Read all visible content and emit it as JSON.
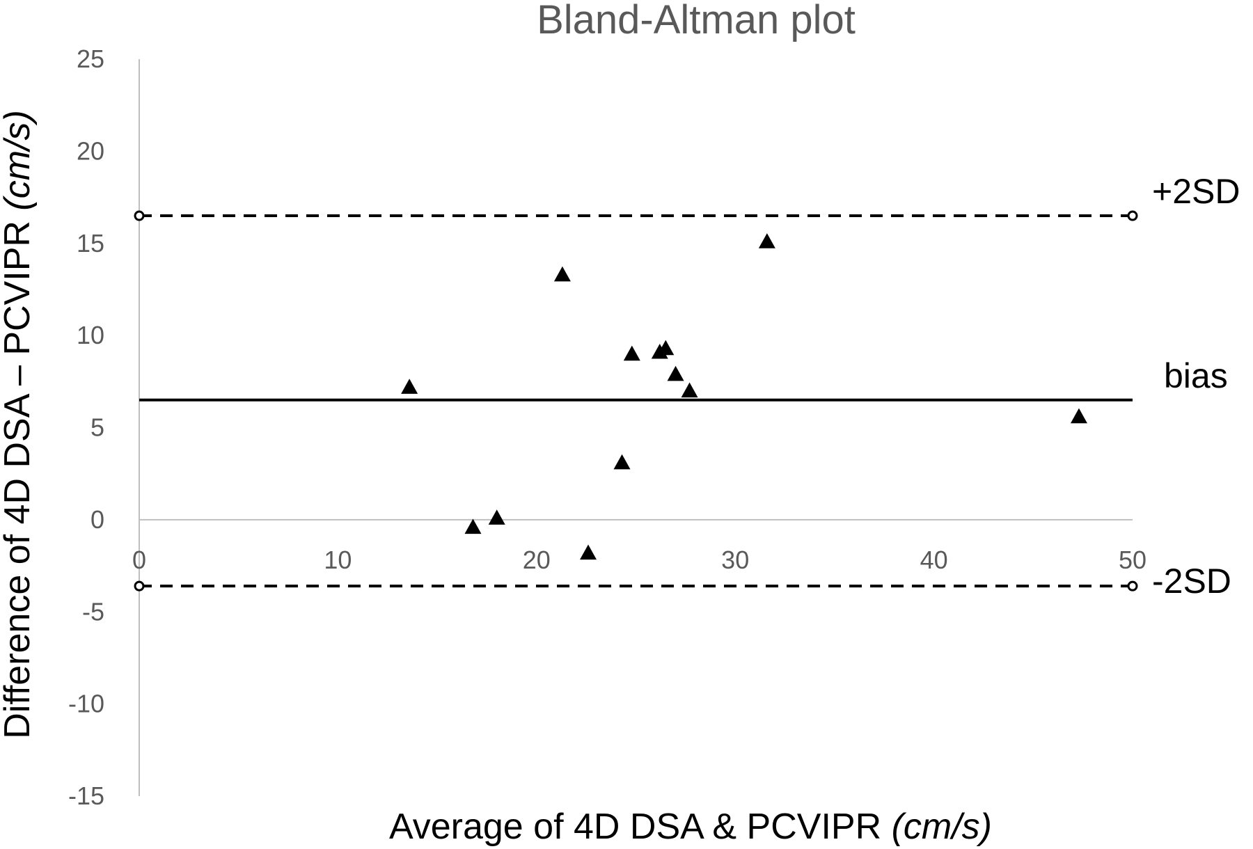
{
  "chart_data": {
    "type": "scatter",
    "title": "Bland-Altman plot",
    "xlabel_main": "Average of 4D DSA & PCVIPR ",
    "xlabel_unit": "(cm/s)",
    "ylabel_main": "Difference of 4D DSA – PCVIPR ",
    "ylabel_unit": "(cm/s)",
    "xlim": [
      0,
      50
    ],
    "ylim": [
      -15,
      25
    ],
    "x_ticks": [
      0,
      10,
      20,
      30,
      40,
      50
    ],
    "y_ticks": [
      25,
      20,
      15,
      10,
      5,
      0,
      -5,
      -10,
      -15
    ],
    "grid": false,
    "marker": "triangle",
    "points": [
      {
        "x": 13.6,
        "y": 7.2
      },
      {
        "x": 16.8,
        "y": -0.4
      },
      {
        "x": 18.0,
        "y": 0.1
      },
      {
        "x": 21.3,
        "y": 13.3
      },
      {
        "x": 22.6,
        "y": -1.8
      },
      {
        "x": 24.3,
        "y": 3.1
      },
      {
        "x": 24.8,
        "y": 9.0
      },
      {
        "x": 26.2,
        "y": 9.1
      },
      {
        "x": 26.5,
        "y": 9.3
      },
      {
        "x": 27.0,
        "y": 7.9
      },
      {
        "x": 27.7,
        "y": 7.0
      },
      {
        "x": 31.6,
        "y": 15.1
      },
      {
        "x": 47.3,
        "y": 5.6
      }
    ],
    "reference_lines": [
      {
        "label": "+2SD",
        "y": 16.5,
        "style": "dashed",
        "end_markers": true
      },
      {
        "label": "bias",
        "y": 6.5,
        "style": "solid",
        "end_markers": false
      },
      {
        "label": "-2SD",
        "y": -3.6,
        "style": "dashed",
        "end_markers": true
      }
    ],
    "colors": {
      "axis": "#bfbfbf",
      "tick_text": "#595959",
      "marker": "#000000",
      "lines": "#000000"
    }
  }
}
